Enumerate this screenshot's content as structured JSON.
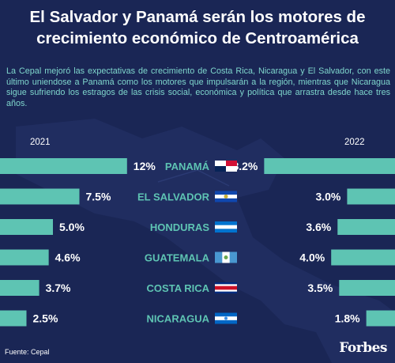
{
  "title": "El Salvador y Panamá serán los motores de crecimiento económico de Centroamérica",
  "subtitle": "La Cepal mejoró las expectativas de crecimiento de Costa Rica, Nicaragua y El Salvador, con este último uniendose a Panamá como los motores que impulsarán a la región, mientras que Nicaragua sigue sufriendo los estragos de las crisis social, económica y política que arrastra desde hace tres años.",
  "source": "Fuente: Cepal",
  "logo": "Forbes",
  "colors": {
    "background": "#1a2655",
    "bar": "#5ec4b3",
    "country_label": "#5ec4b3",
    "subtitle": "#7fd6cc"
  },
  "chart_data": {
    "type": "bar",
    "categories": [
      "PANAMÁ",
      "EL SALVADOR",
      "HONDURAS",
      "GUATEMALA",
      "COSTA RICA",
      "NICARAGUA"
    ],
    "series": [
      {
        "name": "2021",
        "values": [
          12,
          7.5,
          5.0,
          4.6,
          3.7,
          2.5
        ],
        "labels": [
          "12%",
          "7.5%",
          "5.0%",
          "4.6%",
          "3.7%",
          "2.5%"
        ]
      },
      {
        "name": "2022",
        "values": [
          8.2,
          3.0,
          3.6,
          4.0,
          3.5,
          1.8
        ],
        "labels": [
          "8.2%",
          "3.0%",
          "3.6%",
          "4.0%",
          "3.5%",
          "1.8%"
        ]
      }
    ],
    "flag_icons": [
      "panama-flag-icon",
      "el-salvador-flag-icon",
      "honduras-flag-icon",
      "guatemala-flag-icon",
      "costa-rica-flag-icon",
      "nicaragua-flag-icon"
    ]
  }
}
